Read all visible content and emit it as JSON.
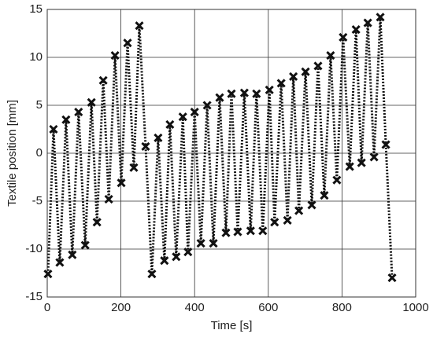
{
  "chart_data": {
    "type": "line",
    "xlabel": "Time [s]",
    "ylabel": "Textile position [mm]",
    "x": [
      2,
      17,
      34,
      51,
      68,
      85,
      103,
      120,
      135,
      152,
      167,
      184,
      201,
      218,
      235,
      250,
      267,
      284,
      301,
      318,
      333,
      350,
      368,
      382,
      400,
      417,
      434,
      451,
      468,
      485,
      500,
      517,
      535,
      552,
      568,
      585,
      603,
      617,
      635,
      652,
      668,
      683,
      701,
      718,
      735,
      752,
      769,
      786,
      803,
      821,
      838,
      853,
      870,
      887,
      904,
      919,
      936
    ],
    "values": [
      -12.6,
      2.5,
      -11.4,
      3.5,
      -10.6,
      4.3,
      -9.6,
      5.3,
      -7.2,
      7.6,
      -4.8,
      10.2,
      -3.1,
      11.5,
      -1.5,
      13.3,
      0.7,
      -12.6,
      1.6,
      -11.2,
      3.0,
      -10.8,
      3.8,
      -10.3,
      4.3,
      -9.4,
      5.0,
      -9.4,
      5.8,
      -8.3,
      6.2,
      -8.2,
      6.3,
      -8.1,
      6.2,
      -8.1,
      6.6,
      -7.2,
      7.3,
      -7.0,
      8.0,
      -6.0,
      8.5,
      -5.4,
      9.1,
      -4.4,
      10.2,
      -2.8,
      12.1,
      -1.4,
      12.9,
      -1.0,
      13.6,
      -0.4,
      14.2,
      0.9,
      -13.0
    ],
    "color": "#111111",
    "xlim": [
      0,
      1000
    ],
    "xticks": [
      0,
      200,
      400,
      600,
      800,
      1000
    ],
    "ylim": [
      -15,
      15
    ],
    "yticks": [
      -15,
      -10,
      -5,
      0,
      5,
      10,
      15
    ],
    "grid": true
  }
}
